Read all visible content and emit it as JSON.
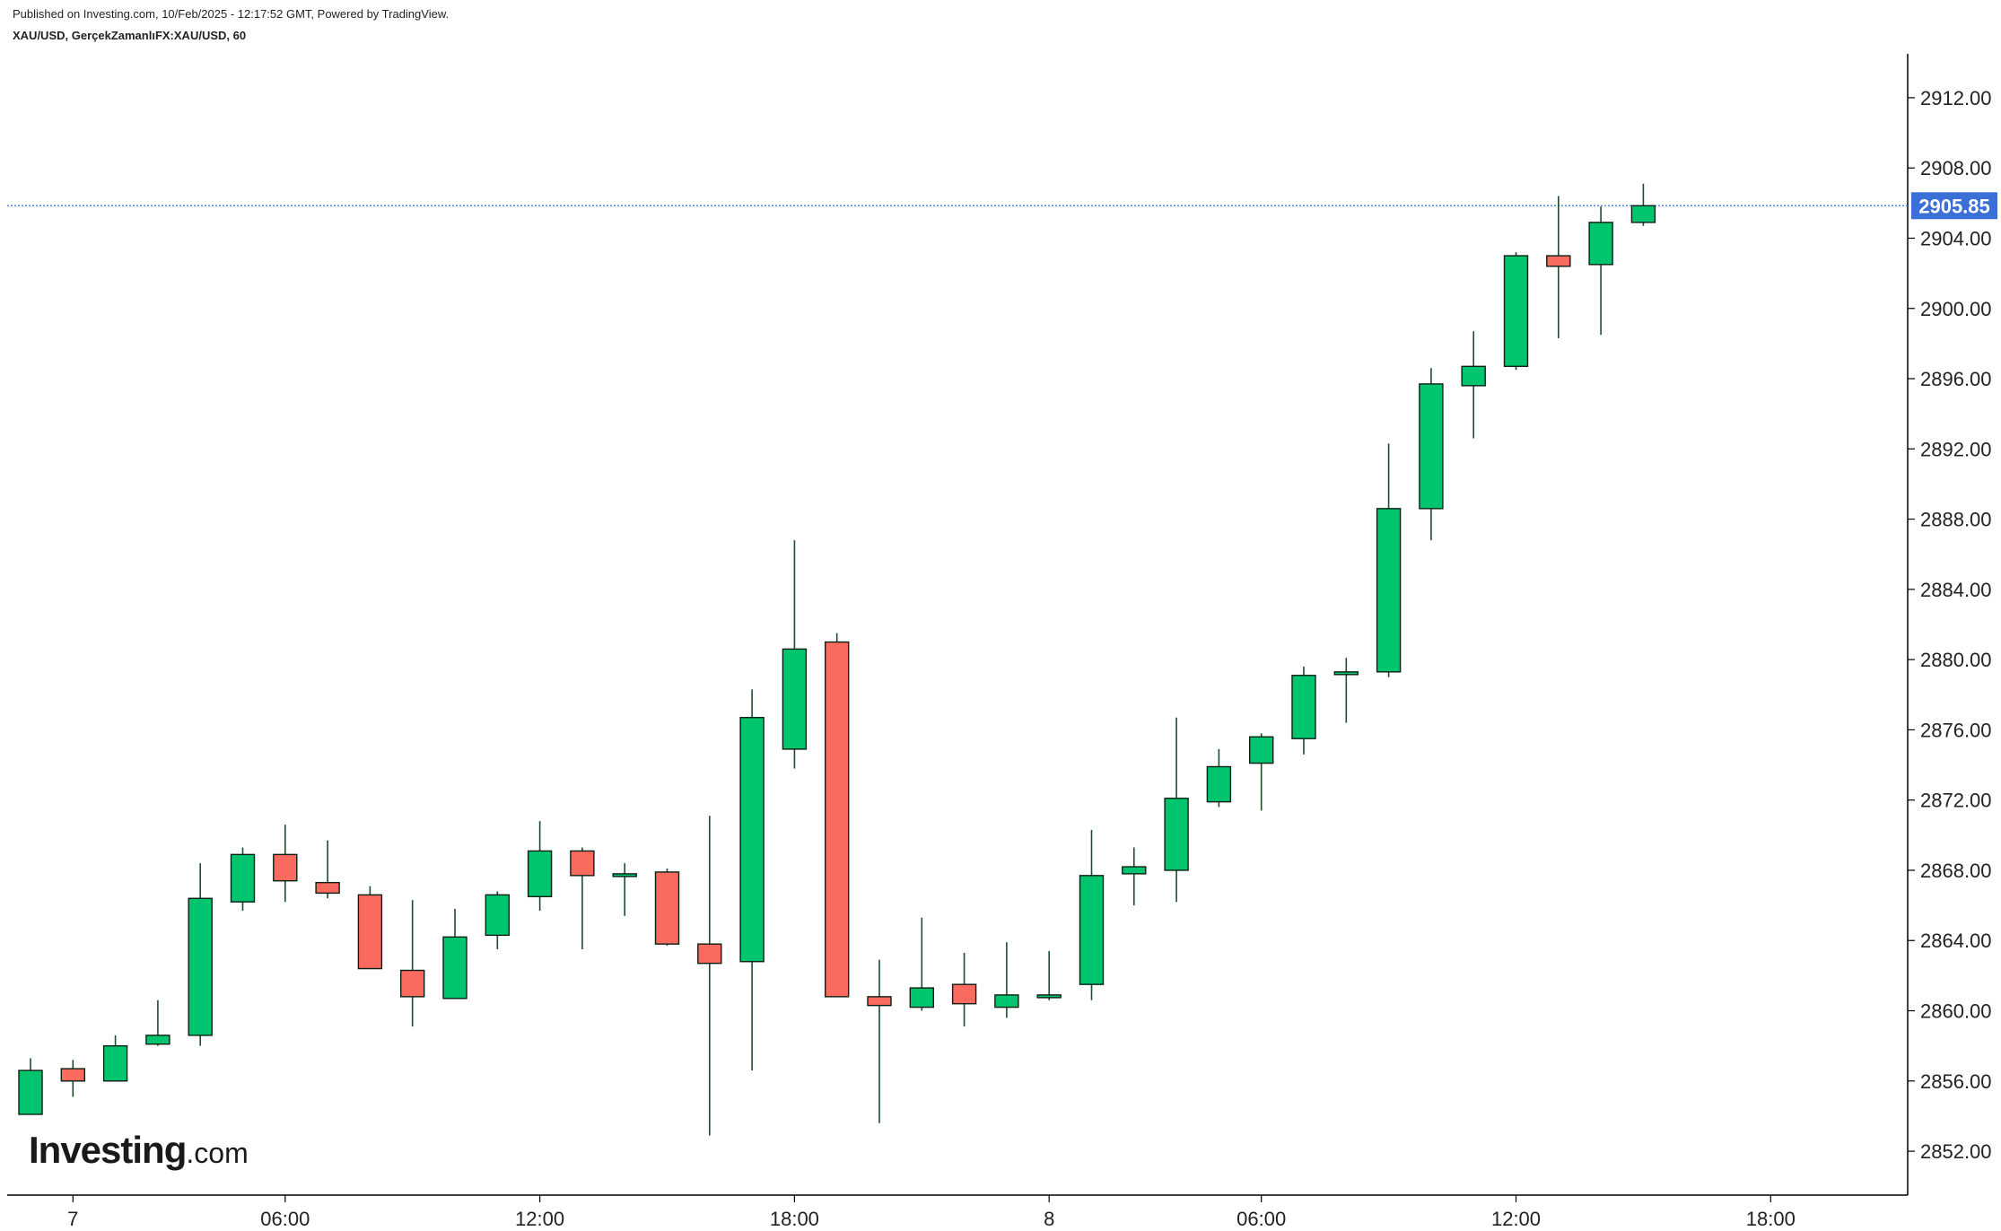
{
  "header": {
    "published": "Published on Investing.com, 10/Feb/2025 - 12:17:52 GMT, Powered by TradingView.",
    "symbol": "XAU/USD, GerçekZamanlıFX:XAU/USD, 60"
  },
  "logo": {
    "main": "Investing",
    "suffix": ".com"
  },
  "colors": {
    "up": "#00c46e",
    "down": "#fa6a5e",
    "wick": "#1b4d2e",
    "last_price": "#3a6fd8"
  },
  "chart_data": {
    "type": "candlestick",
    "title": "",
    "xlabel": "",
    "ylabel": "",
    "ylim": [
      2849.5,
      2914.5
    ],
    "y_ticks": [
      "2852.00",
      "2856.00",
      "2860.00",
      "2864.00",
      "2868.00",
      "2872.00",
      "2876.00",
      "2880.00",
      "2884.00",
      "2888.00",
      "2892.00",
      "2896.00",
      "2900.00",
      "2904.00",
      "2908.00",
      "2912.00"
    ],
    "x_ticks": [
      {
        "label": "7",
        "bar": 1
      },
      {
        "label": "06:00",
        "bar": 6
      },
      {
        "label": "12:00",
        "bar": 12
      },
      {
        "label": "18:00",
        "bar": 18
      },
      {
        "label": "8",
        "bar": 24
      },
      {
        "label": "06:00",
        "bar": 29
      },
      {
        "label": "12:00",
        "bar": 35
      },
      {
        "label": "18:00",
        "bar": 41
      }
    ],
    "last_price": "2905.85",
    "last_price_value": 2905.85,
    "candles": [
      {
        "o": 2854.1,
        "h": 2857.3,
        "l": 2854.1,
        "c": 2856.6
      },
      {
        "o": 2856.7,
        "h": 2857.2,
        "l": 2855.1,
        "c": 2856.0
      },
      {
        "o": 2856.0,
        "h": 2858.6,
        "l": 2856.0,
        "c": 2858.0
      },
      {
        "o": 2858.1,
        "h": 2860.6,
        "l": 2858.0,
        "c": 2858.6
      },
      {
        "o": 2858.6,
        "h": 2868.4,
        "l": 2858.0,
        "c": 2866.4
      },
      {
        "o": 2866.2,
        "h": 2869.3,
        "l": 2865.7,
        "c": 2868.9
      },
      {
        "o": 2868.9,
        "h": 2870.6,
        "l": 2866.2,
        "c": 2867.4
      },
      {
        "o": 2867.3,
        "h": 2869.7,
        "l": 2866.4,
        "c": 2866.7
      },
      {
        "o": 2866.6,
        "h": 2867.1,
        "l": 2862.4,
        "c": 2862.4
      },
      {
        "o": 2862.3,
        "h": 2866.3,
        "l": 2859.1,
        "c": 2860.8
      },
      {
        "o": 2860.7,
        "h": 2865.8,
        "l": 2860.7,
        "c": 2864.2
      },
      {
        "o": 2864.3,
        "h": 2866.8,
        "l": 2863.5,
        "c": 2866.6
      },
      {
        "o": 2866.5,
        "h": 2870.8,
        "l": 2865.7,
        "c": 2869.1
      },
      {
        "o": 2869.1,
        "h": 2869.3,
        "l": 2863.5,
        "c": 2867.7
      },
      {
        "o": 2867.7,
        "h": 2868.4,
        "l": 2865.4,
        "c": 2867.8
      },
      {
        "o": 2867.9,
        "h": 2868.1,
        "l": 2863.7,
        "c": 2863.8
      },
      {
        "o": 2863.8,
        "h": 2871.1,
        "l": 2852.9,
        "c": 2862.7
      },
      {
        "o": 2862.8,
        "h": 2878.3,
        "l": 2856.6,
        "c": 2876.7
      },
      {
        "o": 2874.9,
        "h": 2886.8,
        "l": 2873.8,
        "c": 2880.6
      },
      {
        "o": 2881.0,
        "h": 2881.5,
        "l": 2860.8,
        "c": 2860.8
      },
      {
        "o": 2860.8,
        "h": 2862.9,
        "l": 2853.6,
        "c": 2860.3
      },
      {
        "o": 2860.2,
        "h": 2865.3,
        "l": 2860.0,
        "c": 2861.3
      },
      {
        "o": 2861.5,
        "h": 2863.3,
        "l": 2859.1,
        "c": 2860.4
      },
      {
        "o": 2860.2,
        "h": 2863.9,
        "l": 2859.6,
        "c": 2860.9
      },
      {
        "o": 2860.8,
        "h": 2863.4,
        "l": 2860.6,
        "c": 2860.9
      },
      {
        "o": 2861.5,
        "h": 2870.3,
        "l": 2860.6,
        "c": 2867.7
      },
      {
        "o": 2867.8,
        "h": 2869.3,
        "l": 2866.0,
        "c": 2868.2
      },
      {
        "o": 2868.0,
        "h": 2876.7,
        "l": 2866.2,
        "c": 2872.1
      },
      {
        "o": 2871.9,
        "h": 2874.9,
        "l": 2871.6,
        "c": 2873.9
      },
      {
        "o": 2874.1,
        "h": 2875.8,
        "l": 2871.4,
        "c": 2875.6
      },
      {
        "o": 2875.5,
        "h": 2879.6,
        "l": 2874.6,
        "c": 2879.1
      },
      {
        "o": 2879.3,
        "h": 2880.1,
        "l": 2876.4,
        "c": 2879.3
      },
      {
        "o": 2879.3,
        "h": 2892.3,
        "l": 2879.0,
        "c": 2888.6
      },
      {
        "o": 2888.6,
        "h": 2896.6,
        "l": 2886.8,
        "c": 2895.7
      },
      {
        "o": 2895.6,
        "h": 2898.7,
        "l": 2892.6,
        "c": 2896.7
      },
      {
        "o": 2896.7,
        "h": 2903.2,
        "l": 2896.5,
        "c": 2903.0
      },
      {
        "o": 2903.0,
        "h": 2906.4,
        "l": 2898.3,
        "c": 2902.4
      },
      {
        "o": 2902.5,
        "h": 2905.8,
        "l": 2898.5,
        "c": 2904.9
      },
      {
        "o": 2904.9,
        "h": 2907.1,
        "l": 2904.7,
        "c": 2905.85
      }
    ]
  }
}
